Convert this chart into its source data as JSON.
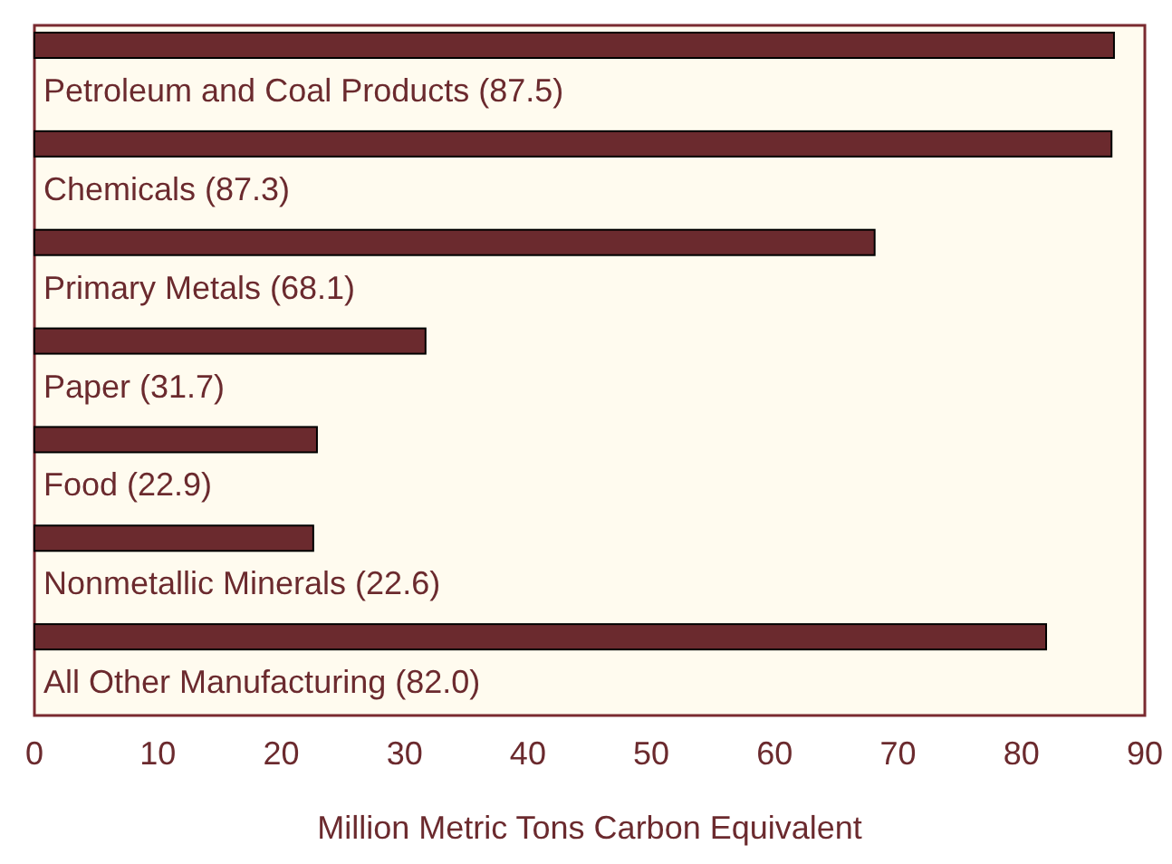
{
  "chart_data": {
    "type": "bar",
    "orientation": "horizontal",
    "xlabel": "Million Metric Tons Carbon Equivalent",
    "categories": [
      "Petroleum and Coal Products (87.5)",
      "Chemicals (87.3)",
      "Primary Metals (68.1)",
      "Paper (31.7)",
      "Food (22.9)",
      "Nonmetallic Minerals (22.6)",
      "All Other Manufacturing (82.0)"
    ],
    "values": [
      87.5,
      87.3,
      68.1,
      31.7,
      22.9,
      22.6,
      82.0
    ],
    "color": "#6b2a2e",
    "xlim": [
      0,
      90
    ],
    "xticks": [
      0,
      10,
      20,
      30,
      40,
      50,
      60,
      70,
      80,
      90
    ],
    "grid": false
  }
}
